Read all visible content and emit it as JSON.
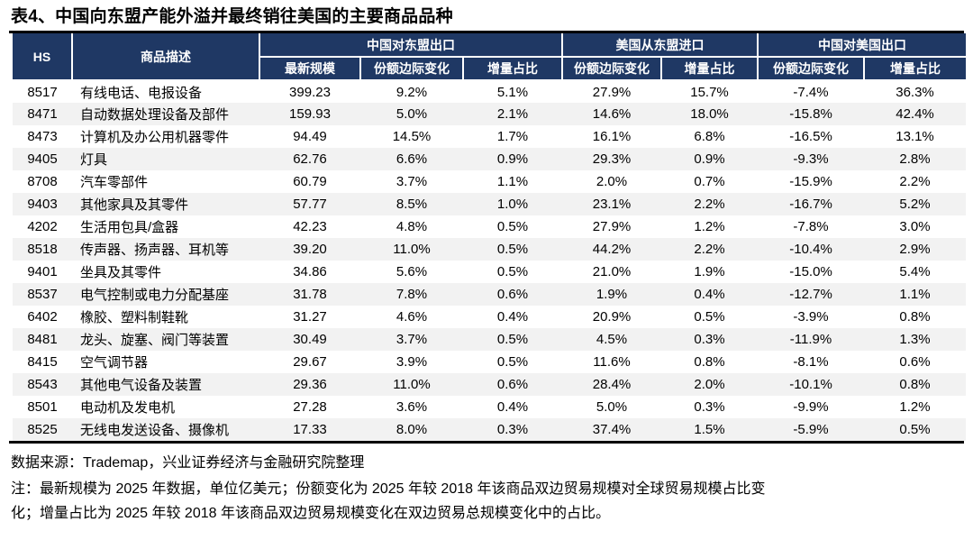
{
  "title": "表4、中国向东盟产能外溢并最终销往美国的主要商品品种",
  "table": {
    "col_headers": {
      "hs": "HS",
      "desc": "商品描述"
    },
    "groups": [
      {
        "label": "中国对东盟出口",
        "sub": [
          "最新规模",
          "份额边际变化",
          "增量占比"
        ]
      },
      {
        "label": "美国从东盟进口",
        "sub": [
          "份额边际变化",
          "增量占比"
        ]
      },
      {
        "label": "中国对美国出口",
        "sub": [
          "份额边际变化",
          "增量占比"
        ]
      }
    ],
    "rows": [
      {
        "hs": "8517",
        "desc": "有线电话、电报设备",
        "values": [
          "399.23",
          "9.2%",
          "5.1%",
          "27.9%",
          "15.7%",
          "-7.4%",
          "36.3%"
        ]
      },
      {
        "hs": "8471",
        "desc": "自动数据处理设备及部件",
        "values": [
          "159.93",
          "5.0%",
          "2.1%",
          "14.6%",
          "18.0%",
          "-15.8%",
          "42.4%"
        ]
      },
      {
        "hs": "8473",
        "desc": "计算机及办公用机器零件",
        "values": [
          "94.49",
          "14.5%",
          "1.7%",
          "16.1%",
          "6.8%",
          "-16.5%",
          "13.1%"
        ]
      },
      {
        "hs": "9405",
        "desc": "灯具",
        "values": [
          "62.76",
          "6.6%",
          "0.9%",
          "29.3%",
          "0.9%",
          "-9.3%",
          "2.8%"
        ]
      },
      {
        "hs": "8708",
        "desc": "汽车零部件",
        "values": [
          "60.79",
          "3.7%",
          "1.1%",
          "2.0%",
          "0.7%",
          "-15.9%",
          "2.2%"
        ]
      },
      {
        "hs": "9403",
        "desc": "其他家具及其零件",
        "values": [
          "57.77",
          "8.5%",
          "1.0%",
          "23.1%",
          "2.2%",
          "-16.7%",
          "5.2%"
        ]
      },
      {
        "hs": "4202",
        "desc": "生活用包具/盒器",
        "values": [
          "42.23",
          "4.8%",
          "0.5%",
          "27.9%",
          "1.2%",
          "-7.8%",
          "3.0%"
        ]
      },
      {
        "hs": "8518",
        "desc": "传声器、扬声器、耳机等",
        "values": [
          "39.20",
          "11.0%",
          "0.5%",
          "44.2%",
          "2.2%",
          "-10.4%",
          "2.9%"
        ]
      },
      {
        "hs": "9401",
        "desc": "坐具及其零件",
        "values": [
          "34.86",
          "5.6%",
          "0.5%",
          "21.0%",
          "1.9%",
          "-15.0%",
          "5.4%"
        ]
      },
      {
        "hs": "8537",
        "desc": "电气控制或电力分配基座",
        "values": [
          "31.78",
          "7.8%",
          "0.6%",
          "1.9%",
          "0.4%",
          "-12.7%",
          "1.1%"
        ]
      },
      {
        "hs": "6402",
        "desc": "橡胶、塑料制鞋靴",
        "values": [
          "31.27",
          "4.6%",
          "0.4%",
          "20.9%",
          "0.5%",
          "-3.9%",
          "0.8%"
        ]
      },
      {
        "hs": "8481",
        "desc": "龙头、旋塞、阀门等装置",
        "values": [
          "30.49",
          "3.7%",
          "0.5%",
          "4.5%",
          "0.3%",
          "-11.9%",
          "1.3%"
        ]
      },
      {
        "hs": "8415",
        "desc": "空气调节器",
        "values": [
          "29.67",
          "3.9%",
          "0.5%",
          "11.6%",
          "0.8%",
          "-8.1%",
          "0.6%"
        ]
      },
      {
        "hs": "8543",
        "desc": "其他电气设备及装置",
        "values": [
          "29.36",
          "11.0%",
          "0.6%",
          "28.4%",
          "2.0%",
          "-10.1%",
          "0.8%"
        ]
      },
      {
        "hs": "8501",
        "desc": "电动机及发电机",
        "values": [
          "27.28",
          "3.6%",
          "0.4%",
          "5.0%",
          "0.3%",
          "-9.9%",
          "1.2%"
        ]
      },
      {
        "hs": "8525",
        "desc": "无线电发送设备、摄像机",
        "values": [
          "17.33",
          "8.0%",
          "0.3%",
          "37.4%",
          "1.5%",
          "-5.9%",
          "0.5%"
        ]
      }
    ]
  },
  "footer": {
    "source": "数据来源：Trademap，兴业证券经济与金融研究院整理",
    "note_lines": [
      "注：最新规模为 2025 年数据，单位亿美元；份额变化为 2025 年较 2018 年该商品双边贸易规模对全球贸易规模占比变",
      "化；增量占比为 2025 年较 2018 年该商品双边贸易规模变化在双边贸易总规模变化中的占比。"
    ]
  },
  "colors": {
    "header_bg": "#1F3864",
    "zebra": "#F2F2F2",
    "rule": "#000000"
  }
}
